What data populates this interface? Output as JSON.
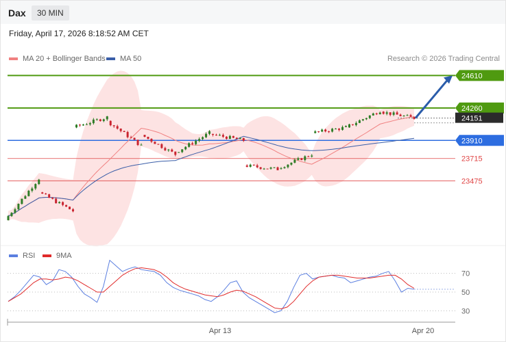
{
  "header": {
    "symbol": "Dax",
    "timeframe": "30 MIN",
    "datetime": "Friday, April 17, 2026 8:18:52 AM CET"
  },
  "legend": {
    "ma20": "MA 20 + Bollinger Bands",
    "ma50": "MA 50",
    "credit": "Research © 2026 Trading Central"
  },
  "rsi_legend": {
    "rsi": "RSI",
    "ma9": "9MA"
  },
  "colors": {
    "resistance": "#4f9a10",
    "pivot": "#2d6de0",
    "support": "#e04545",
    "ma20": "#f08080",
    "ma50": "#3a5ea8",
    "bollinger_fill": "#fde3e3",
    "candle_up": "#2f7d27",
    "candle_down": "#c9242f",
    "rsi": "#5b7fe0",
    "rsi_ma": "#e02a2a",
    "arrow": "#2a5caa",
    "last_price_bg": "#2b2b2b"
  },
  "chart_data": [
    {
      "type": "candlestick",
      "instrument": "Dax",
      "interval": "30 MIN",
      "ylim": [
        22880,
        24760
      ],
      "x_tick_labels": [
        "Apr 13",
        "Apr 20"
      ],
      "levels": [
        {
          "value": 24610,
          "label": "24610",
          "kind": "resistance"
        },
        {
          "value": 24260,
          "label": "24260",
          "kind": "resistance"
        },
        {
          "value": 24151,
          "label": "24151",
          "kind": "last"
        },
        {
          "value": 23910,
          "label": "23910",
          "kind": "pivot"
        },
        {
          "value": 23715,
          "label": "23715",
          "kind": "support"
        },
        {
          "value": 23475,
          "label": "23475",
          "kind": "support"
        }
      ],
      "arrow": {
        "from": 24151,
        "to": 24610,
        "direction": "up"
      },
      "sessions": [
        {
          "start": 23050,
          "end": 23500,
          "trend": "up"
        },
        {
          "start": 23350,
          "end": 23150,
          "trend": "down"
        },
        {
          "start": 24050,
          "end": 24160,
          "trend": "up"
        },
        {
          "start": 24120,
          "end": 23850,
          "trend": "down"
        },
        {
          "start": 23970,
          "end": 23760,
          "trend": "down"
        },
        {
          "start": 23780,
          "end": 23990,
          "trend": "up"
        },
        {
          "start": 23980,
          "end": 23910,
          "trend": "down"
        },
        {
          "start": 23640,
          "end": 23600,
          "trend": "down"
        },
        {
          "start": 23610,
          "end": 23760,
          "trend": "up"
        },
        {
          "start": 23990,
          "end": 24050,
          "trend": "up"
        },
        {
          "start": 24050,
          "end": 24230,
          "trend": "up"
        },
        {
          "start": 24220,
          "end": 24151,
          "trend": "down"
        }
      ]
    },
    {
      "type": "line",
      "name": "RSI",
      "ylim": [
        20,
        80
      ],
      "y_ticks": [
        70,
        50,
        30
      ],
      "series": [
        {
          "name": "RSI",
          "values": [
            40,
            45,
            52,
            60,
            68,
            66,
            58,
            62,
            74,
            72,
            66,
            56,
            48,
            44,
            39,
            56,
            84,
            78,
            72,
            75,
            77,
            74,
            73,
            72,
            68,
            60,
            55,
            52,
            50,
            48,
            46,
            42,
            40,
            45,
            52,
            60,
            62,
            50,
            44,
            40,
            36,
            32,
            28,
            30,
            40,
            55,
            68,
            70,
            64,
            66,
            67,
            68,
            66,
            65,
            60,
            62,
            64,
            66,
            67,
            70,
            72,
            62,
            50,
            54,
            53
          ]
        },
        {
          "name": "9MA",
          "values": [
            40,
            44,
            48,
            54,
            60,
            64,
            64,
            63,
            64,
            66,
            65,
            62,
            58,
            54,
            50,
            50,
            56,
            62,
            68,
            72,
            75,
            76,
            75,
            74,
            71,
            66,
            60,
            56,
            53,
            51,
            49,
            47,
            46,
            45,
            47,
            50,
            52,
            51,
            48,
            45,
            41,
            37,
            33,
            32,
            34,
            40,
            48,
            56,
            62,
            66,
            67,
            68,
            68,
            67,
            66,
            65,
            65,
            65,
            66,
            67,
            68,
            68,
            64,
            58,
            54
          ]
        }
      ]
    }
  ]
}
